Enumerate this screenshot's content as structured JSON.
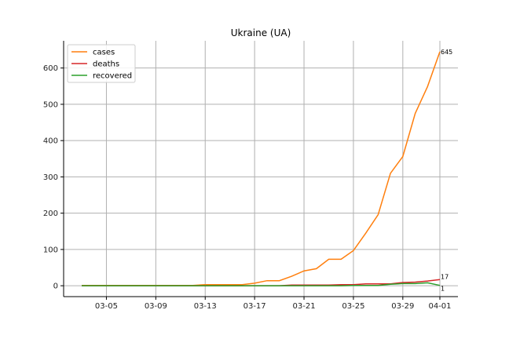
{
  "chart_data": {
    "type": "line",
    "title": "Ukraine (UA)",
    "xlabel": "",
    "ylabel": "",
    "x": [
      "03-03",
      "03-04",
      "03-05",
      "03-06",
      "03-07",
      "03-08",
      "03-09",
      "03-10",
      "03-11",
      "03-12",
      "03-13",
      "03-14",
      "03-15",
      "03-16",
      "03-17",
      "03-18",
      "03-19",
      "03-20",
      "03-21",
      "03-22",
      "03-23",
      "03-24",
      "03-25",
      "03-26",
      "03-27",
      "03-28",
      "03-29",
      "03-30",
      "03-31",
      "04-01"
    ],
    "xticks": [
      "03-05",
      "03-09",
      "03-13",
      "03-17",
      "03-21",
      "03-25",
      "03-29",
      "04-01"
    ],
    "yticks": [
      0,
      100,
      200,
      300,
      400,
      500,
      600
    ],
    "ylim": [
      -30,
      675
    ],
    "grid": true,
    "legend_position": "top-left",
    "series": [
      {
        "name": "cases",
        "color": "#ff7f0e",
        "values": [
          1,
          1,
          1,
          1,
          1,
          1,
          1,
          1,
          1,
          1,
          3,
          3,
          3,
          3,
          7,
          14,
          14,
          26,
          41,
          47,
          73,
          73,
          97,
          145,
          196,
          310,
          356,
          475,
          549,
          645
        ],
        "end_label": "645"
      },
      {
        "name": "deaths",
        "color": "#d62728",
        "values": [
          0,
          0,
          0,
          0,
          0,
          0,
          0,
          0,
          0,
          0,
          0,
          0,
          0,
          0,
          0,
          0,
          0,
          2,
          2,
          2,
          2,
          3,
          3,
          5,
          5,
          5,
          9,
          10,
          13,
          17
        ],
        "end_label": "17"
      },
      {
        "name": "recovered",
        "color": "#2ca02c",
        "values": [
          0,
          0,
          0,
          0,
          0,
          0,
          0,
          0,
          0,
          0,
          0,
          0,
          0,
          0,
          0,
          0,
          0,
          0,
          0,
          0,
          0,
          0,
          1,
          1,
          1,
          4,
          6,
          6,
          8,
          1
        ],
        "end_label": "1"
      }
    ]
  }
}
